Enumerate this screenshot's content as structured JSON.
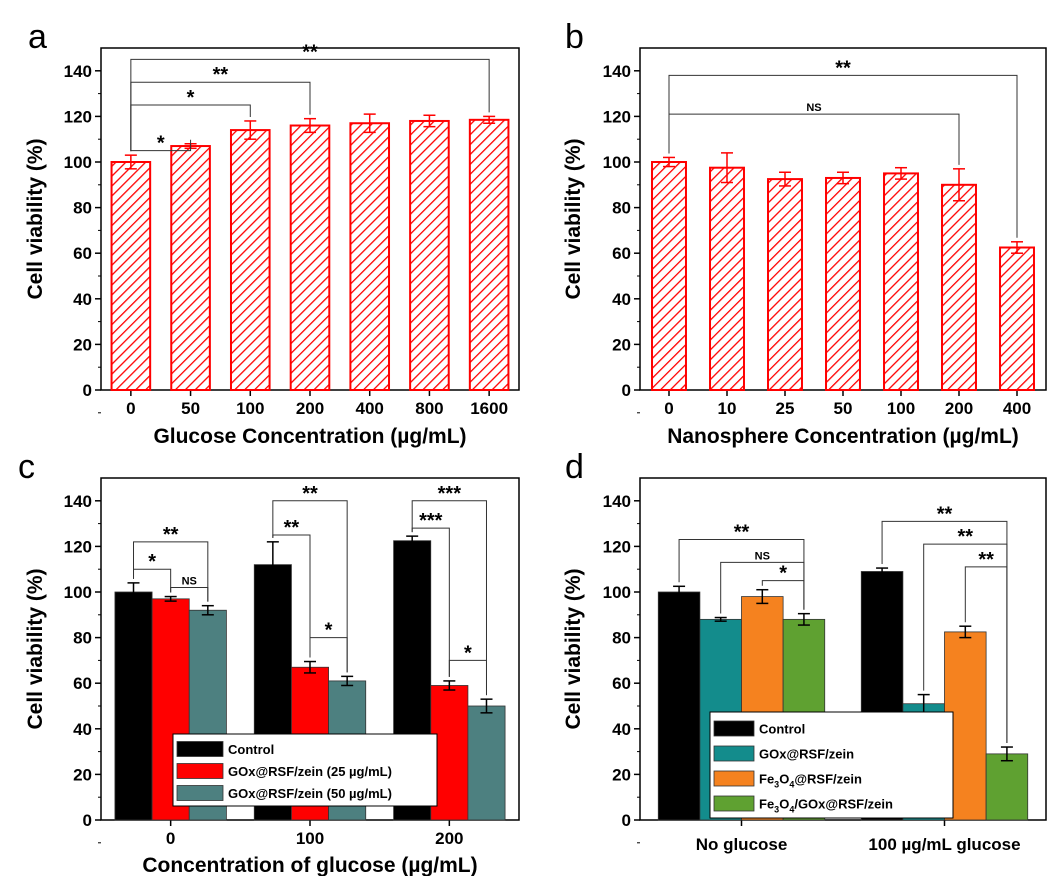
{
  "chart_data": [
    {
      "panel": "a",
      "type": "bar",
      "title": "",
      "xlabel": "Glucose Concentration (µg/mL)",
      "ylabel": "Cell viability (%)",
      "ylim": [
        0,
        150
      ],
      "yticks": [
        0,
        20,
        40,
        60,
        80,
        100,
        120,
        140
      ],
      "categories": [
        "0",
        "50",
        "100",
        "200",
        "400",
        "800",
        "1600"
      ],
      "series": [
        {
          "values": [
            100,
            107,
            114,
            116,
            117,
            118,
            118.5
          ],
          "errors": [
            3,
            1,
            4,
            3,
            4,
            2.5,
            1.5
          ],
          "color": "#ff0000",
          "fill": "hatched"
        }
      ],
      "annotations": [
        {
          "from": "0",
          "to": "50",
          "label": "*",
          "y": 105
        },
        {
          "from": "0",
          "to": "100",
          "label": "*",
          "y": 125
        },
        {
          "from": "0",
          "to": "200",
          "label": "**",
          "y": 135
        },
        {
          "from": "0",
          "to": "1600",
          "label": "**",
          "y": 145
        }
      ]
    },
    {
      "panel": "b",
      "type": "bar",
      "title": "",
      "xlabel": "Nanosphere Concentration (µg/mL)",
      "ylabel": "Cell viability (%)",
      "ylim": [
        0,
        150
      ],
      "yticks": [
        0,
        20,
        40,
        60,
        80,
        100,
        120,
        140
      ],
      "categories": [
        "0",
        "10",
        "25",
        "50",
        "100",
        "200",
        "400"
      ],
      "series": [
        {
          "values": [
            100,
            97.5,
            92.5,
            93,
            95,
            90,
            62.5
          ],
          "errors": [
            2,
            6.5,
            3,
            2.5,
            2.5,
            7,
            2.5
          ],
          "color": "#ff0000",
          "fill": "hatched"
        }
      ],
      "annotations": [
        {
          "from": "0",
          "to": "200",
          "label": "NS",
          "y": 121
        },
        {
          "from": "0",
          "to": "400",
          "label": "**",
          "y": 138
        }
      ]
    },
    {
      "panel": "c",
      "type": "bar",
      "title": "",
      "xlabel": "Concentration of glucose (µg/mL)",
      "ylabel": "Cell viability (%)",
      "ylim": [
        0,
        150
      ],
      "yticks": [
        0,
        20,
        40,
        60,
        80,
        100,
        120,
        140
      ],
      "categories": [
        "0",
        "100",
        "200"
      ],
      "series": [
        {
          "name": "Control",
          "values": [
            100,
            112,
            122.5
          ],
          "errors": [
            4,
            10,
            2
          ],
          "color": "#000000"
        },
        {
          "name": "GOx@RSF/zein (25 µg/mL)",
          "values": [
            97,
            67,
            59
          ],
          "errors": [
            1,
            2.5,
            2
          ],
          "color": "#ff0000"
        },
        {
          "name": "GOx@RSF/zein (50 µg/mL)",
          "values": [
            92,
            61,
            50
          ],
          "errors": [
            2,
            2,
            3
          ],
          "color": "#4d8080"
        }
      ],
      "legend": "bottom-center",
      "annotations": [
        {
          "group": "0",
          "from": 0,
          "to": 1,
          "label": "*",
          "y": 110
        },
        {
          "group": "0",
          "from": 1,
          "to": 2,
          "label": "NS",
          "y": 102
        },
        {
          "group": "0",
          "from": 0,
          "to": 2,
          "label": "**",
          "y": 122
        },
        {
          "group": "100",
          "from": 0,
          "to": 1,
          "label": "**",
          "y": 125
        },
        {
          "group": "100",
          "from": 0,
          "to": 2,
          "label": "**",
          "y": 140
        },
        {
          "group": "100",
          "from": 1,
          "to": 2,
          "label": "*",
          "y": 80
        },
        {
          "group": "200",
          "from": 0,
          "to": 1,
          "label": "***",
          "y": 128
        },
        {
          "group": "200",
          "from": 0,
          "to": 2,
          "label": "***",
          "y": 140
        },
        {
          "group": "200",
          "from": 1,
          "to": 2,
          "label": "*",
          "y": 70
        }
      ]
    },
    {
      "panel": "d",
      "type": "bar",
      "title": "",
      "xlabel": "",
      "ylabel": "Cell viability (%)",
      "ylim": [
        0,
        150
      ],
      "yticks": [
        0,
        20,
        40,
        60,
        80,
        100,
        120,
        140
      ],
      "categories": [
        "No glucose",
        "100 µg/mL glucose"
      ],
      "series": [
        {
          "name": "Control",
          "values": [
            100,
            109
          ],
          "errors": [
            2.5,
            1.5
          ],
          "color": "#000000"
        },
        {
          "name": "GOx@RSF/zein",
          "values": [
            88,
            51
          ],
          "errors": [
            0.8,
            4
          ],
          "color": "#138c8c"
        },
        {
          "name": "Fe3O4@RSF/zein",
          "values": [
            98,
            82.5
          ],
          "errors": [
            3,
            2.5
          ],
          "color": "#f5821f"
        },
        {
          "name": "Fe3O4/GOx@RSF/zein",
          "values": [
            88,
            29
          ],
          "errors": [
            2.5,
            3
          ],
          "color": "#5fa131"
        }
      ],
      "legend": "bottom-center",
      "annotations": [
        {
          "group": "No glucose",
          "from": 0,
          "to": 3,
          "label": "**",
          "y": 123
        },
        {
          "group": "No glucose",
          "from": 1,
          "to": 3,
          "label": "NS",
          "y": 113
        },
        {
          "group": "No glucose",
          "from": 2,
          "to": 3,
          "label": "*",
          "y": 105
        },
        {
          "group": "100 µg/mL glucose",
          "from": 0,
          "to": 3,
          "label": "**",
          "y": 131
        },
        {
          "group": "100 µg/mL glucose",
          "from": 1,
          "to": 3,
          "label": "**",
          "y": 121
        },
        {
          "group": "100 µg/mL glucose",
          "from": 2,
          "to": 3,
          "label": "**",
          "y": 111
        }
      ]
    }
  ]
}
